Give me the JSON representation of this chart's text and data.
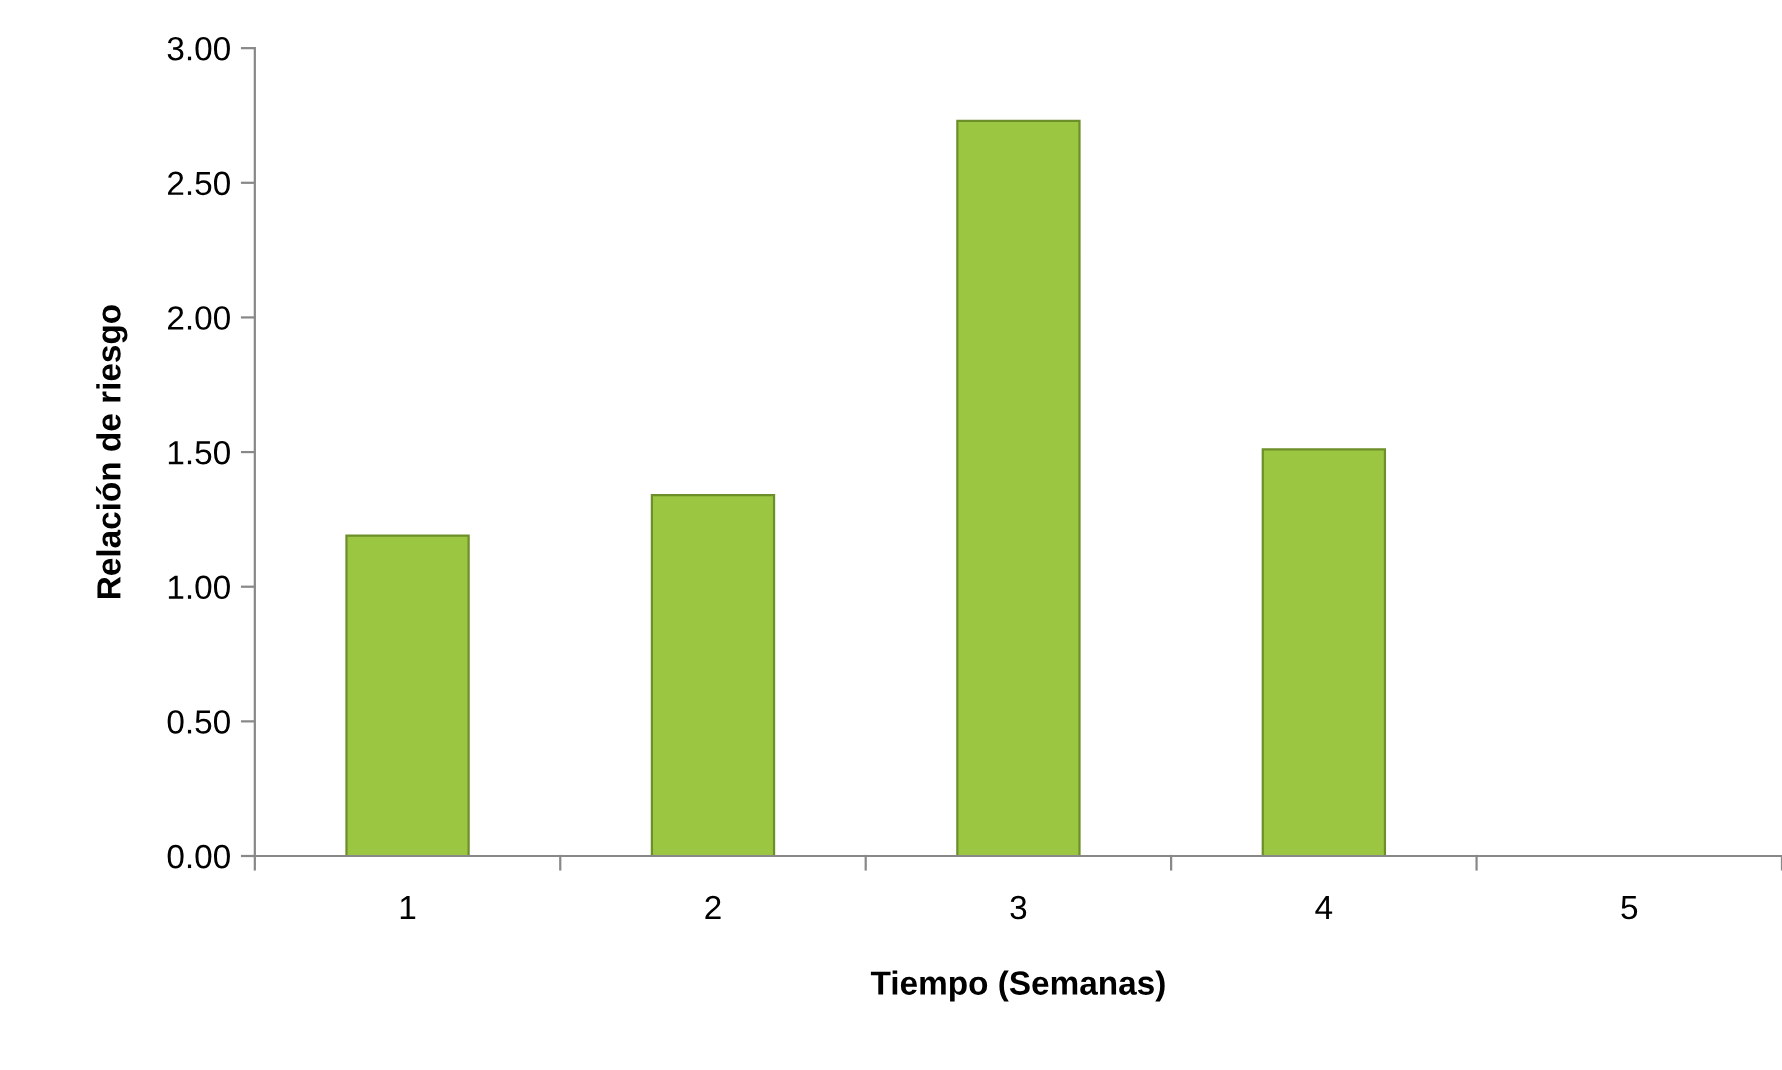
{
  "chart_data": {
    "type": "bar",
    "xlabel": "Tiempo (Semanas)",
    "ylabel": "Relación de riesgo",
    "categories": [
      "1",
      "2",
      "3",
      "4",
      "5"
    ],
    "values": [
      1.19,
      1.34,
      2.73,
      1.51,
      null
    ],
    "color": "#9ac642",
    "ylim": [
      0,
      3
    ],
    "yticks": [
      {
        "value": 0,
        "label": "0.00"
      },
      {
        "value": 0.5,
        "label": "0.50"
      },
      {
        "value": 1,
        "label": "1.00"
      },
      {
        "value": 1.5,
        "label": "1.50"
      },
      {
        "value": 2,
        "label": "2.00"
      },
      {
        "value": 2.5,
        "label": "2.50"
      },
      {
        "value": 3,
        "label": "3.00"
      }
    ],
    "grid": false
  }
}
